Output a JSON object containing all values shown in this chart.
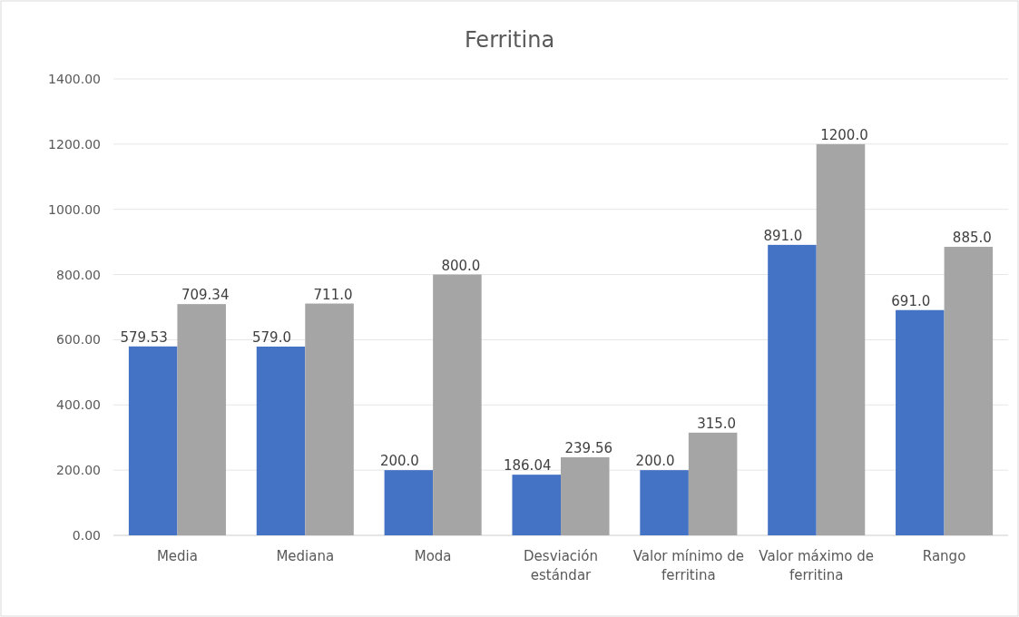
{
  "chart_data": {
    "type": "bar",
    "title": "Ferritina",
    "categories": [
      "Media",
      "Mediana",
      "Moda",
      "Desviación estándar",
      "Valor mínimo de ferritina",
      "Valor máximo de ferritina",
      "Rango"
    ],
    "series": [
      {
        "color": "#4472c4",
        "values": [
          579.53,
          579,
          200,
          186.04,
          200,
          891,
          691
        ],
        "value_labels": [
          "579.53",
          "579.0",
          "200.0",
          "186.04",
          "200.0",
          "891.0",
          "691.0"
        ]
      },
      {
        "color": "#a5a5a5",
        "values": [
          709.34,
          711,
          800,
          239.56,
          315,
          1200,
          885
        ],
        "value_labels": [
          "709.34",
          "711.0",
          "800.0",
          "239.56",
          "315.0",
          "1200.0",
          "885.0"
        ]
      }
    ],
    "ylim": [
      0,
      1400
    ],
    "yticks": [
      {
        "value": 0,
        "label": "0.00"
      },
      {
        "value": 200,
        "label": "200.00"
      },
      {
        "value": 400,
        "label": "400.00"
      },
      {
        "value": 600,
        "label": "600.00"
      },
      {
        "value": 800,
        "label": "800.00"
      },
      {
        "value": 1000,
        "label": "1000.00"
      },
      {
        "value": 1200,
        "label": "1200.00"
      },
      {
        "value": 1400,
        "label": "1400.00"
      }
    ],
    "grid": "y"
  }
}
